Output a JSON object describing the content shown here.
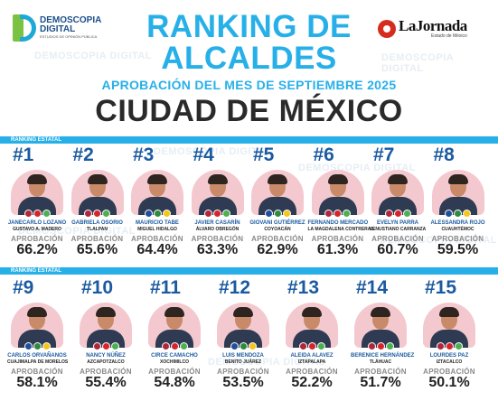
{
  "header": {
    "brand_left_line1": "DEMOSCOPIA",
    "brand_left_line2": "DIGITAL",
    "brand_left_tagline": "ESTUDIOS DE OPINIÓN PÚBLICA",
    "brand_right_name": "LaJornada",
    "brand_right_tagline": "Estado de México",
    "title_line1": "RANKING DE",
    "title_line2": "ALCALDES",
    "subtitle": "APROBACIÓN DEL MES DE SEPTIEMBRE 2025",
    "city": "CIUDAD DE MÉXICO"
  },
  "watermark": "DEMOSCOPIA DIGITAL",
  "section_label": "RANKING ESTATAL",
  "approval_label": "APROBACIÓN",
  "colors": {
    "accent": "#27b0e8",
    "rank_blue": "#1b5aa0",
    "photo_bg": "#f3c9cf",
    "morena": "#b0263a",
    "pan": "#1f4f9c",
    "pri": "#2e8b3c",
    "mc": "#f28c1a"
  },
  "row1": [
    {
      "rank": "#1",
      "name": "JANECARLO LOZANO",
      "place": "GUSTAVO A. MADERO",
      "approval": "66.2%",
      "value": 66.2,
      "badges": [
        "morena",
        "pt",
        "pvem"
      ]
    },
    {
      "rank": "#2",
      "name": "GABRIELA OSORIO",
      "place": "TLALPAN",
      "approval": "65.6%",
      "value": 65.6,
      "badges": [
        "morena",
        "pt",
        "pvem"
      ]
    },
    {
      "rank": "#3",
      "name": "MAURICIO TABE",
      "place": "MIGUEL HIDALGO",
      "approval": "64.4%",
      "value": 64.4,
      "badges": [
        "pan",
        "pri",
        "prd"
      ]
    },
    {
      "rank": "#4",
      "name": "JAVIER CASARÍN",
      "place": "ÁLVARO OBREGÓN",
      "approval": "63.3%",
      "value": 63.3,
      "badges": [
        "morena",
        "pt",
        "pvem"
      ]
    },
    {
      "rank": "#5",
      "name": "GIOVANI GUTIÉRREZ",
      "place": "COYOACÁN",
      "approval": "62.9%",
      "value": 62.9,
      "badges": [
        "pan",
        "pri",
        "prd"
      ]
    },
    {
      "rank": "#6",
      "name": "FERNANDO MERCADO",
      "place": "LA MAGDALENA CONTRERAS",
      "approval": "61.3%",
      "value": 61.3,
      "badges": [
        "morena",
        "pt",
        "pvem"
      ]
    },
    {
      "rank": "#7",
      "name": "EVELYN PARRA",
      "place": "VENUSTIANO CARRANZA",
      "approval": "60.7%",
      "value": 60.7,
      "badges": [
        "morena",
        "pt",
        "pvem"
      ]
    },
    {
      "rank": "#8",
      "name": "ALESSANDRA ROJO",
      "place": "CUAUHTÉMOC",
      "approval": "59.5%",
      "value": 59.5,
      "badges": [
        "pan",
        "pri",
        "prd"
      ]
    }
  ],
  "row2": [
    {
      "rank": "#9",
      "name": "CARLOS ORVAÑANOS",
      "place": "CUAJIMALPA DE MORELOS",
      "approval": "58.1%",
      "value": 58.1,
      "badges": [
        "pan",
        "pri",
        "prd"
      ]
    },
    {
      "rank": "#10",
      "name": "NANCY NÚÑEZ",
      "place": "AZCAPOTZALCO",
      "approval": "55.4%",
      "value": 55.4,
      "badges": [
        "morena",
        "pt",
        "pvem"
      ]
    },
    {
      "rank": "#11",
      "name": "CIRCE CAMACHO",
      "place": "XOCHIMILCO",
      "approval": "54.8%",
      "value": 54.8,
      "badges": [
        "morena",
        "pt",
        "pvem"
      ]
    },
    {
      "rank": "#12",
      "name": "LUIS MENDOZA",
      "place": "BENITO JUÁREZ",
      "approval": "53.5%",
      "value": 53.5,
      "badges": [
        "pan",
        "pri",
        "prd"
      ]
    },
    {
      "rank": "#13",
      "name": "ALEIDA ALAVEZ",
      "place": "IZTAPALAPA",
      "approval": "52.2%",
      "value": 52.2,
      "badges": [
        "morena",
        "pt",
        "pvem"
      ]
    },
    {
      "rank": "#14",
      "name": "BERENICE HERNÁNDEZ",
      "place": "TLÁHUAC",
      "approval": "51.7%",
      "value": 51.7,
      "badges": [
        "morena",
        "pt",
        "pvem"
      ]
    },
    {
      "rank": "#15",
      "name": "LOURDES PAZ",
      "place": "IZTACALCO",
      "approval": "50.1%",
      "value": 50.1,
      "badges": [
        "morena",
        "pt",
        "pvem"
      ]
    }
  ]
}
